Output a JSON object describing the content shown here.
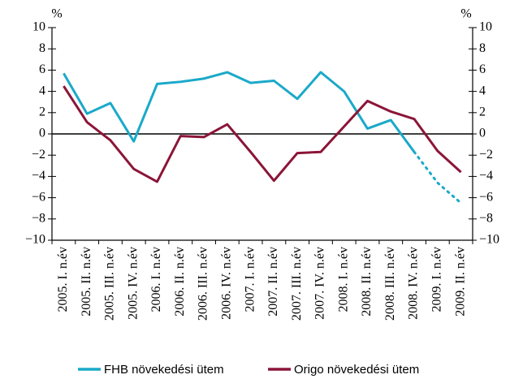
{
  "chart_data": {
    "type": "line",
    "y_unit": "%",
    "y2_unit": "%",
    "categories": [
      "2005. I. n.év",
      "2005. II. n.év",
      "2005. III. n.év",
      "2005. IV. n.év",
      "2006. I. n.év",
      "2006. II. n.év",
      "2006. III. n.év",
      "2006. IV. n.év",
      "2007. I. n.év",
      "2007. II. n.év",
      "2007. III. n.év",
      "2007. IV. n.év",
      "2008. I. n.év",
      "2008. II. n.év",
      "2008. III. n.év",
      "2008. IV. n.év",
      "2009. I. n.év",
      "2009. II. n.év"
    ],
    "series": [
      {
        "name": "FHB növekedési ütem",
        "color": "#1aa9c9",
        "dashed_from": 15,
        "values": [
          5.7,
          1.9,
          2.9,
          -0.7,
          4.7,
          4.9,
          5.2,
          5.8,
          4.8,
          5.0,
          3.3,
          5.8,
          4.0,
          0.5,
          1.3,
          -1.7,
          -4.6,
          -6.5
        ]
      },
      {
        "name": "Origo növekedési ütem",
        "color": "#8b1538",
        "values": [
          4.5,
          1.1,
          -0.6,
          -3.3,
          -4.5,
          -0.2,
          -0.3,
          0.9,
          -1.7,
          -4.4,
          -1.8,
          -1.7,
          0.7,
          3.1,
          2.1,
          1.4,
          -1.6,
          -3.6
        ]
      }
    ],
    "ylim": [
      -10,
      10
    ],
    "yticks": [
      {
        "value": -10,
        "label": "−10"
      },
      {
        "value": -8,
        "label": "−8"
      },
      {
        "value": -6,
        "label": "−6"
      },
      {
        "value": -4,
        "label": "−4"
      },
      {
        "value": -2,
        "label": "−2"
      },
      0,
      2,
      4,
      6,
      8,
      10
    ],
    "y2lim": [
      -10,
      10
    ],
    "y2ticks": [
      {
        "value": -10,
        "label": "−10"
      },
      {
        "value": -8,
        "label": "−8"
      },
      {
        "value": -6,
        "label": "−6"
      },
      {
        "value": -4,
        "label": "−4"
      },
      {
        "value": -2,
        "label": "−2"
      },
      0,
      2,
      4,
      6,
      8,
      10
    ],
    "legend": "bottom"
  }
}
